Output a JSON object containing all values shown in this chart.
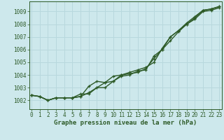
{
  "title": "Graphe pression niveau de la mer (hPa)",
  "background_color": "#cde8ec",
  "grid_color": "#b8d8dd",
  "line_color": "#2d5a27",
  "x_ticks": [
    0,
    1,
    2,
    3,
    4,
    5,
    6,
    7,
    8,
    9,
    10,
    11,
    12,
    13,
    14,
    15,
    16,
    17,
    18,
    19,
    20,
    21,
    22,
    23
  ],
  "y_ticks": [
    1002,
    1003,
    1004,
    1005,
    1006,
    1007,
    1008,
    1009
  ],
  "ylim": [
    1001.3,
    1009.8
  ],
  "xlim": [
    -0.3,
    23.3
  ],
  "series": [
    [
      1002.4,
      1002.3,
      1002.0,
      1002.2,
      1002.2,
      1002.2,
      1002.3,
      1002.6,
      1003.0,
      1003.4,
      1003.9,
      1004.0,
      1004.1,
      1004.2,
      1004.5,
      1005.3,
      1006.0,
      1007.0,
      1007.5,
      1008.0,
      1008.5,
      1009.1,
      1009.2,
      1009.4
    ],
    [
      1002.4,
      1002.3,
      1002.0,
      1002.2,
      1002.2,
      1002.2,
      1002.3,
      1003.1,
      1003.5,
      1003.4,
      1003.5,
      1004.0,
      1004.2,
      1004.4,
      1004.6,
      1005.0,
      1006.1,
      1007.0,
      1007.5,
      1008.1,
      1008.6,
      1009.1,
      1009.2,
      1009.4
    ],
    [
      1002.4,
      1002.3,
      1002.0,
      1002.2,
      1002.2,
      1002.2,
      1002.5,
      1002.5,
      1003.0,
      1003.0,
      1003.5,
      1003.9,
      1004.0,
      1004.3,
      1004.4,
      1005.5,
      1006.0,
      1006.7,
      1007.4,
      1008.0,
      1008.4,
      1009.0,
      1009.1,
      1009.3
    ]
  ],
  "marker": "+",
  "marker_size": 3.5,
  "line_width": 1.0,
  "tick_fontsize": 5.5,
  "label_fontsize": 6.5
}
